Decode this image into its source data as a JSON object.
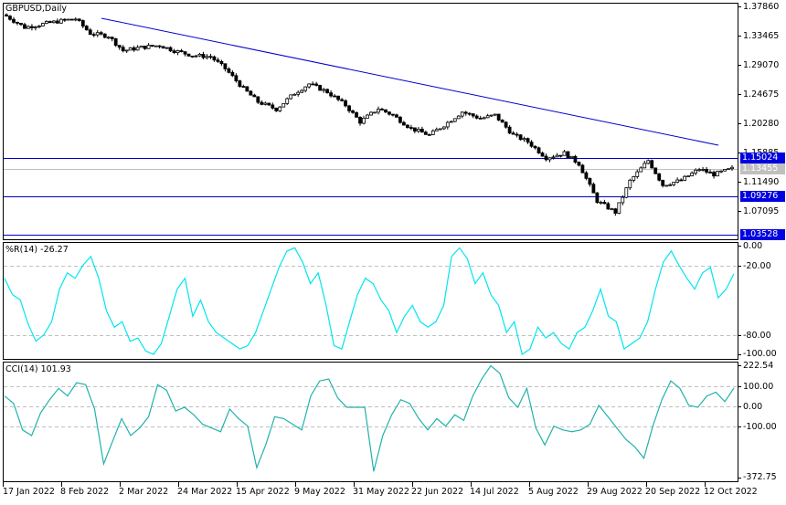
{
  "header": {
    "symbol_title": "GBPUSD,Daily"
  },
  "colors": {
    "background": "#FFFFFF",
    "frame": "#000000",
    "candle_bull_body": "#FFFFFF",
    "candle_bear_body": "#000000",
    "level_line": "#0000CC",
    "trendline": "#0000CC",
    "bid_line": "#C0C0C0",
    "wpr_line": "#00E5EE",
    "cci_line": "#20B2AA",
    "grid_dash": "#C0C0C0",
    "level_tag_bg": "#0000E0",
    "bid_tag_bg": "#C0C0C0"
  },
  "price_panel": {
    "axis_ticks": [
      "1.37860",
      "1.33465",
      "1.29070",
      "1.24675",
      "1.20280",
      "1.15885",
      "1.11490",
      "1.07095"
    ],
    "level_tags": [
      {
        "label": "1.15024",
        "kind": "level"
      },
      {
        "label": "1.13455",
        "kind": "bid"
      },
      {
        "label": "1.09276",
        "kind": "level"
      },
      {
        "label": "1.03528",
        "kind": "level"
      }
    ]
  },
  "wpr_panel": {
    "title": "%R(14) -26.27",
    "axis_ticks": [
      "0.00",
      "-20.00",
      "-80.00",
      "-100.00"
    ]
  },
  "cci_panel": {
    "title": "CCI(14) 101.93",
    "axis_ticks": [
      "222.54",
      "100.00",
      "0.00",
      "-100.00",
      "-372.75"
    ]
  },
  "time_axis": {
    "labels": [
      "17 Jan 2022",
      "8 Feb 2022",
      "2 Mar 2022",
      "24 Mar 2022",
      "15 Apr 2022",
      "9 May 2022",
      "31 May 2022",
      "22 Jun 2022",
      "14 Jul 2022",
      "5 Aug 2022",
      "29 Aug 2022",
      "20 Sep 2022",
      "12 Oct 2022"
    ]
  },
  "chart_data": [
    {
      "type": "candlestick",
      "title": "GBPUSD,Daily",
      "ylim": [
        1.03528,
        1.3786
      ],
      "x_tick_labels": [
        "17 Jan 2022",
        "8 Feb 2022",
        "2 Mar 2022",
        "24 Mar 2022",
        "15 Apr 2022",
        "9 May 2022",
        "31 May 2022",
        "22 Jun 2022",
        "14 Jul 2022",
        "5 Aug 2022",
        "29 Aug 2022",
        "20 Sep 2022",
        "12 Oct 2022"
      ],
      "y_tick_labels": [
        "1.37860",
        "1.33465",
        "1.29070",
        "1.24675",
        "1.20280",
        "1.15885",
        "1.11490",
        "1.07095"
      ],
      "horizontal_levels": [
        1.15024,
        1.09276,
        1.03528
      ],
      "bid_line": 1.13455,
      "trendline": {
        "from": {
          "date": "10 Feb 2022",
          "price": 1.3615
        },
        "to": {
          "date": "18 Oct 2022",
          "price": 1.172
        }
      },
      "close_path": [
        [
          "17 Jan 2022",
          1.364
        ],
        [
          "24 Jan 2022",
          1.347
        ],
        [
          "31 Jan 2022",
          1.351
        ],
        [
          "8 Feb 2022",
          1.356
        ],
        [
          "16 Feb 2022",
          1.36
        ],
        [
          "24 Feb 2022",
          1.338
        ],
        [
          "2 Mar 2022",
          1.334
        ],
        [
          "8 Mar 2022",
          1.312
        ],
        [
          "16 Mar 2022",
          1.317
        ],
        [
          "24 Mar 2022",
          1.32
        ],
        [
          "1 Apr 2022",
          1.312
        ],
        [
          "8 Apr 2022",
          1.305
        ],
        [
          "15 Apr 2022",
          1.303
        ],
        [
          "22 Apr 2022",
          1.285
        ],
        [
          "28 Apr 2022",
          1.255
        ],
        [
          "5 May 2022",
          1.235
        ],
        [
          "13 May 2022",
          1.224
        ],
        [
          "19 May 2022",
          1.248
        ],
        [
          "27 May 2022",
          1.262
        ],
        [
          "3 Jun 2022",
          1.25
        ],
        [
          "10 Jun 2022",
          1.23
        ],
        [
          "15 Jun 2022",
          1.205
        ],
        [
          "22 Jun 2022",
          1.225
        ],
        [
          "30 Jun 2022",
          1.215
        ],
        [
          "7 Jul 2022",
          1.195
        ],
        [
          "14 Jul 2022",
          1.185
        ],
        [
          "22 Jul 2022",
          1.2
        ],
        [
          "1 Aug 2022",
          1.22
        ],
        [
          "5 Aug 2022",
          1.21
        ],
        [
          "12 Aug 2022",
          1.215
        ],
        [
          "19 Aug 2022",
          1.185
        ],
        [
          "26 Aug 2022",
          1.175
        ],
        [
          "2 Sep 2022",
          1.151
        ],
        [
          "9 Sep 2022",
          1.158
        ],
        [
          "16 Sep 2022",
          1.142
        ],
        [
          "23 Sep 2022",
          1.086
        ],
        [
          "26 Sep 2022",
          1.069
        ],
        [
          "30 Sep 2022",
          1.116
        ],
        [
          "5 Oct 2022",
          1.147
        ],
        [
          "12 Oct 2022",
          1.11
        ],
        [
          "14 Oct 2022",
          1.117
        ],
        [
          "18 Oct 2022",
          1.134
        ],
        [
          "21 Oct 2022",
          1.126
        ],
        [
          "24 Oct 2022",
          1.1345
        ]
      ]
    },
    {
      "type": "line",
      "title": "%R(14) -26.27",
      "name": "Williams %R (14)",
      "ylim": [
        -100,
        0
      ],
      "reference_levels": [
        -20,
        -80
      ],
      "last_value": -26.27,
      "values_approx": [
        -30,
        -45,
        -50,
        -72,
        -88,
        -82,
        -70,
        -40,
        -25,
        -30,
        -18,
        -10,
        -30,
        -60,
        -75,
        -70,
        -88,
        -85,
        -97,
        -100,
        -90,
        -65,
        -40,
        -30,
        -65,
        -50,
        -70,
        -80,
        -85,
        -90,
        -95,
        -92,
        -80,
        -60,
        -40,
        -20,
        -5,
        -2,
        -15,
        -35,
        -25,
        -55,
        -92,
        -95,
        -70,
        -45,
        -30,
        -35,
        -50,
        -60,
        -80,
        -65,
        -55,
        -70,
        -75,
        -70,
        -55,
        -10,
        -2,
        -12,
        -35,
        -25,
        -45,
        -55,
        -80,
        -70,
        -100,
        -95,
        -75,
        -85,
        -80,
        -90,
        -95,
        -80,
        -75,
        -60,
        -40,
        -65,
        -70,
        -95,
        -90,
        -85,
        -70,
        -40,
        -15,
        -5,
        -18,
        -30,
        -40,
        -25,
        -20,
        -48,
        -40,
        -26
      ]
    },
    {
      "type": "line",
      "title": "CCI(14) 101.93",
      "name": "CCI (14)",
      "ylim": [
        -372.75,
        222.54
      ],
      "reference_levels": [
        100,
        0,
        -100
      ],
      "last_value": 101.93,
      "values_approx": [
        60,
        20,
        -120,
        -150,
        -30,
        40,
        100,
        60,
        130,
        120,
        -10,
        -300,
        -180,
        -60,
        -150,
        -110,
        -50,
        120,
        90,
        -20,
        0,
        -40,
        -90,
        -110,
        -130,
        -10,
        -60,
        -100,
        -320,
        -200,
        -50,
        -60,
        -90,
        -120,
        60,
        140,
        150,
        50,
        0,
        0,
        0,
        -340,
        -150,
        -40,
        40,
        20,
        -60,
        -120,
        -60,
        -100,
        -40,
        -70,
        60,
        150,
        220,
        180,
        50,
        0,
        100,
        -110,
        -200,
        -100,
        -120,
        -130,
        -120,
        -90,
        10,
        -50,
        -110,
        -170,
        -210,
        -270,
        -100,
        40,
        140,
        100,
        10,
        0,
        60,
        80,
        30,
        102
      ]
    }
  ]
}
